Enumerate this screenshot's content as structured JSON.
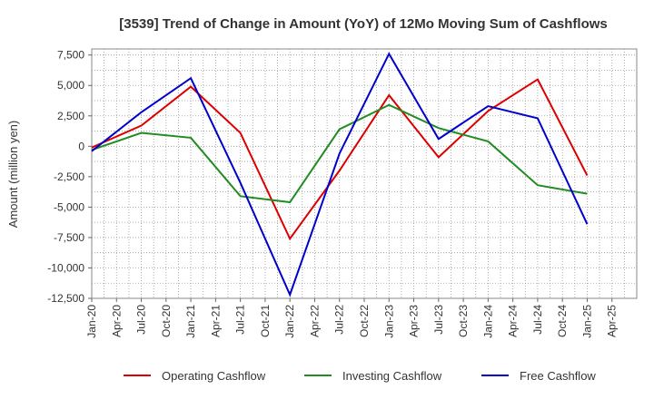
{
  "chart_data": {
    "type": "line",
    "title": "[3539]  Trend of Change in Amount (YoY) of 12Mo Moving Sum of Cashflows",
    "xlabel": "",
    "ylabel": "Amount (million yen)",
    "ylim": [
      -12500,
      8000
    ],
    "yticks": [
      7500,
      5000,
      2500,
      0,
      -2500,
      -5000,
      -7500,
      -10000,
      -12500
    ],
    "ytick_labels": [
      "7,500",
      "5,000",
      "2,500",
      "0",
      "-2,500",
      "-5,000",
      "-7,500",
      "-10,000",
      "-12,500"
    ],
    "xtick_labels": [
      "Jan-20",
      "Apr-20",
      "Jul-20",
      "Oct-20",
      "Jan-21",
      "Apr-21",
      "Jul-21",
      "Oct-21",
      "Jan-22",
      "Apr-22",
      "Jul-22",
      "Oct-22",
      "Jan-23",
      "Apr-23",
      "Jul-23",
      "Oct-23",
      "Jan-24",
      "Apr-24",
      "Jul-24",
      "Oct-24",
      "Jan-25",
      "Apr-25"
    ],
    "x_points": [
      "Jan-20",
      "Jul-20",
      "Jan-21",
      "Jul-21",
      "Jan-22",
      "Jul-22",
      "Jan-23",
      "Jul-23",
      "Jan-24",
      "Jul-24",
      "Jan-25"
    ],
    "grid": true,
    "legend_position": "bottom",
    "series": [
      {
        "name": "Operating Cashflow",
        "color": "#dd0000",
        "values": [
          -100,
          1700,
          4900,
          1100,
          -7600,
          -2000,
          4200,
          -900,
          2900,
          5500,
          -2400
        ]
      },
      {
        "name": "Investing Cashflow",
        "color": "#228b22",
        "values": [
          -300,
          1100,
          700,
          -4100,
          -4600,
          1400,
          3400,
          1500,
          400,
          -3200,
          -3900
        ]
      },
      {
        "name": "Free Cashflow",
        "color": "#0000cc",
        "values": [
          -400,
          2800,
          5600,
          -3000,
          -12200,
          -600,
          7600,
          600,
          3300,
          2300,
          -6400
        ]
      }
    ]
  }
}
